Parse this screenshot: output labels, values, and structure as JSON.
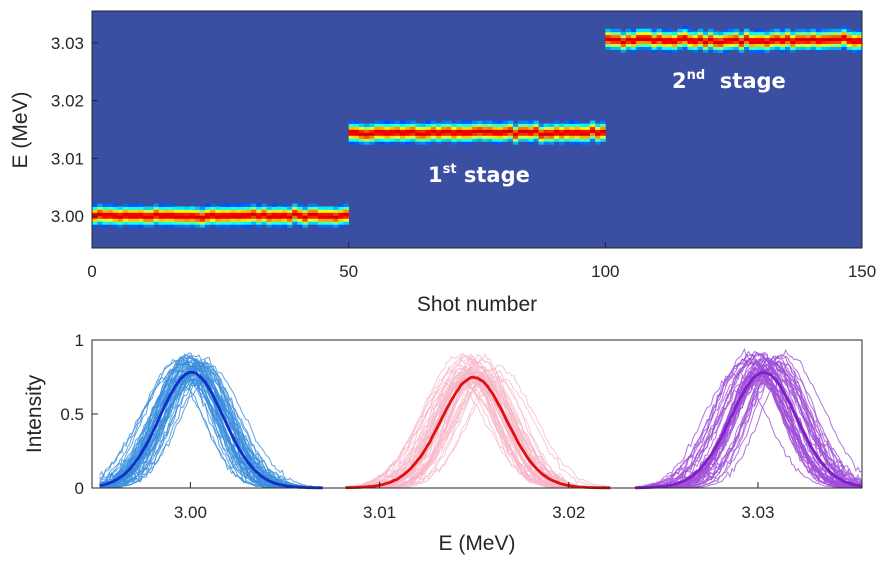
{
  "chart_data": [
    {
      "type": "heatmap",
      "title": "",
      "xlabel": "Shot number",
      "ylabel": "E (MeV)",
      "xlim": [
        0,
        150
      ],
      "ylim": [
        2.9945,
        3.0355
      ],
      "xticks": [
        0,
        50,
        100,
        150
      ],
      "xtick_labels": [
        "0",
        "50",
        "100",
        "150"
      ],
      "yticks": [
        3.0,
        3.01,
        3.02,
        3.03
      ],
      "ytick_labels": [
        "3.00",
        "3.01",
        "3.02",
        "3.03"
      ],
      "background_color": "#3b4fa2",
      "colormap": "jet",
      "stages": [
        {
          "shot_start": 0,
          "shot_end": 50,
          "center_energy": 3.0001,
          "label": ""
        },
        {
          "shot_start": 50,
          "shot_end": 100,
          "center_energy": 3.0145,
          "label": "1st stage",
          "label_main": "1",
          "label_sup": "st",
          "label_rest": " stage"
        },
        {
          "shot_start": 100,
          "shot_end": 150,
          "center_energy": 3.0305,
          "label": "2nd stage",
          "label_main": "2",
          "label_sup": "nd",
          "label_rest": "  stage"
        }
      ]
    },
    {
      "type": "line",
      "title": "",
      "xlabel": "E (MeV)",
      "ylabel": "Intensity",
      "xlim": [
        2.9948,
        3.0355
      ],
      "ylim": [
        0,
        1
      ],
      "xticks": [
        3.0,
        3.01,
        3.02,
        3.03
      ],
      "xtick_labels": [
        "3.00",
        "3.01",
        "3.02",
        "3.03"
      ],
      "yticks": [
        0,
        0.5,
        1
      ],
      "ytick_labels": [
        "0",
        "0.5",
        "1"
      ],
      "grid": false,
      "series": [
        {
          "group": "stage0",
          "center": 3.0,
          "sigma": 0.00165,
          "peak": 0.75,
          "range": [
            2.9952,
            3.007
          ],
          "shot_color": "#3a8fdc",
          "mean_color": "#1230c8"
        },
        {
          "group": "stage1",
          "center": 3.015,
          "sigma": 0.00165,
          "peak": 0.75,
          "range": [
            3.0082,
            3.0222
          ],
          "shot_color": "#f7b7c8",
          "mean_color": "#e01010"
        },
        {
          "group": "stage2",
          "center": 3.0302,
          "sigma": 0.00165,
          "peak": 0.76,
          "range": [
            3.0235,
            3.0355
          ],
          "shot_color": "#a04fd8",
          "mean_color": "#8020c8"
        }
      ]
    }
  ]
}
